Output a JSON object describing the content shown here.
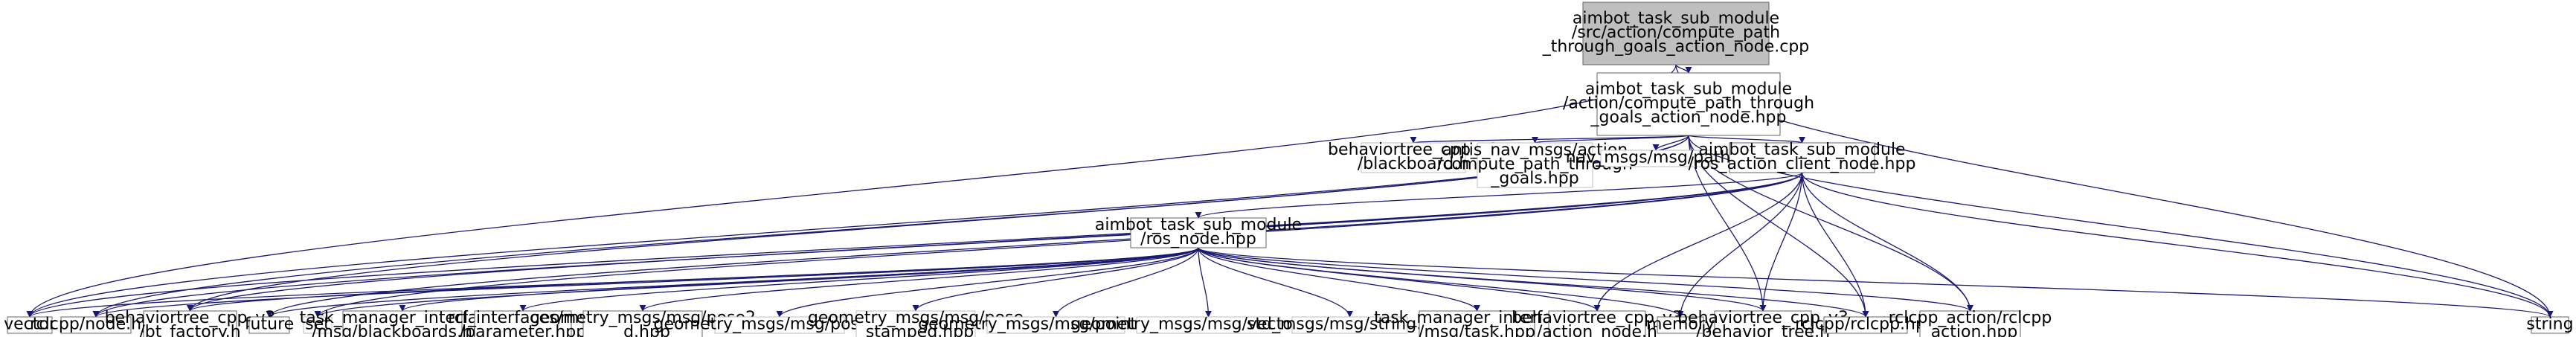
{
  "colors": {
    "edge": "#191970",
    "node_border": "#666666",
    "node_border_missing": "#bfbfbf",
    "root_fill": "#bfbfbf",
    "node_fill": "#ffffff"
  },
  "nodes": {
    "root": {
      "lines": [
        "aimbot_task_sub_module",
        "/src/action/compute_path",
        "_through_goals_action_node.cpp"
      ]
    },
    "hpp": {
      "lines": [
        "aimbot_task_sub_module",
        "/action/compute_path_through",
        "_goals_action_node.hpp"
      ]
    },
    "vector": {
      "lines": [
        "vector"
      ]
    },
    "string": {
      "lines": [
        "string"
      ]
    },
    "blackboard": {
      "lines": [
        "behaviortree_cpp_v3",
        "/blackboard.h"
      ]
    },
    "antis": {
      "lines": [
        "antis_nav_msgs/action",
        "/compute_path_through",
        "_goals.hpp"
      ]
    },
    "navpath": {
      "lines": [
        "nav_msgs/msg/path.h"
      ]
    },
    "rosaction": {
      "lines": [
        "aimbot_task_sub_module",
        "/ros_action_client_node.hpp"
      ]
    },
    "rosnode": {
      "lines": [
        "aimbot_task_sub_module",
        "/ros_node.hpp"
      ]
    },
    "rclnode": {
      "lines": [
        "rclcpp/node.hpp"
      ]
    },
    "btfactory": {
      "lines": [
        "behaviortree_cpp_v3",
        "/bt_factory.h"
      ]
    },
    "future": {
      "lines": [
        "future"
      ]
    },
    "set": {
      "lines": [
        "set"
      ]
    },
    "tmblack": {
      "lines": [
        "task_manager_interfaces",
        "/msg/blackboards.hpp"
      ]
    },
    "rclparam": {
      "lines": [
        "rcl_interfaces/msg",
        "/parameter.hpp"
      ]
    },
    "pose2d": {
      "lines": [
        "geometry_msgs/msg/pose2",
        "_d.hpp"
      ]
    },
    "pose": {
      "lines": [
        "geometry_msgs/msg/pose.hpp"
      ]
    },
    "posestamped": {
      "lines": [
        "geometry_msgs/msg/pose",
        "_stamped.hpp"
      ]
    },
    "point32": {
      "lines": [
        "geometry_msgs/msg/point32.hpp"
      ]
    },
    "vector3": {
      "lines": [
        "geometry_msgs/msg/vector3.hpp"
      ]
    },
    "stdstring": {
      "lines": [
        "std_msgs/msg/string.hpp"
      ]
    },
    "tmtask": {
      "lines": [
        "task_manager_interfaces",
        "/msg/task.hpp"
      ]
    },
    "actionnode": {
      "lines": [
        "behaviortree_cpp_v3",
        "/action_node.h"
      ]
    },
    "memory": {
      "lines": [
        "memory"
      ]
    },
    "behtree": {
      "lines": [
        "behaviortree_cpp_v3",
        "/behavior_tree.h"
      ]
    },
    "rclcpp": {
      "lines": [
        "rclcpp/rclcpp.hpp"
      ]
    },
    "rclaction": {
      "lines": [
        "rclcpp_action/rclcpp",
        "_action.hpp"
      ]
    }
  },
  "edges": [
    [
      "root",
      "hpp"
    ],
    [
      "root",
      "vector"
    ],
    [
      "root",
      "string"
    ],
    [
      "hpp",
      "vector"
    ],
    [
      "hpp",
      "string"
    ],
    [
      "hpp",
      "blackboard"
    ],
    [
      "hpp",
      "antis"
    ],
    [
      "hpp",
      "navpath"
    ],
    [
      "hpp",
      "rosaction"
    ],
    [
      "hpp",
      "rclnode"
    ],
    [
      "hpp",
      "btfactory"
    ],
    [
      "hpp",
      "behtree"
    ],
    [
      "hpp",
      "rclcpp"
    ],
    [
      "hpp",
      "rclaction"
    ],
    [
      "rosaction",
      "rosnode"
    ],
    [
      "rosaction",
      "vector"
    ],
    [
      "rosaction",
      "string"
    ],
    [
      "rosaction",
      "rclnode"
    ],
    [
      "rosaction",
      "btfactory"
    ],
    [
      "rosaction",
      "future"
    ],
    [
      "rosaction",
      "set"
    ],
    [
      "rosaction",
      "actionnode"
    ],
    [
      "rosaction",
      "memory"
    ],
    [
      "rosaction",
      "behtree"
    ],
    [
      "rosaction",
      "rclcpp"
    ],
    [
      "rosaction",
      "rclaction"
    ],
    [
      "rosnode",
      "vector"
    ],
    [
      "rosnode",
      "string"
    ],
    [
      "rosnode",
      "rclnode"
    ],
    [
      "rosnode",
      "btfactory"
    ],
    [
      "rosnode",
      "future"
    ],
    [
      "rosnode",
      "set"
    ],
    [
      "rosnode",
      "tmblack"
    ],
    [
      "rosnode",
      "rclparam"
    ],
    [
      "rosnode",
      "pose2d"
    ],
    [
      "rosnode",
      "pose"
    ],
    [
      "rosnode",
      "posestamped"
    ],
    [
      "rosnode",
      "point32"
    ],
    [
      "rosnode",
      "vector3"
    ],
    [
      "rosnode",
      "stdstring"
    ],
    [
      "rosnode",
      "tmtask"
    ],
    [
      "rosnode",
      "actionnode"
    ],
    [
      "rosnode",
      "memory"
    ],
    [
      "rosnode",
      "behtree"
    ],
    [
      "rosnode",
      "rclcpp"
    ],
    [
      "rosnode",
      "rclaction"
    ]
  ]
}
